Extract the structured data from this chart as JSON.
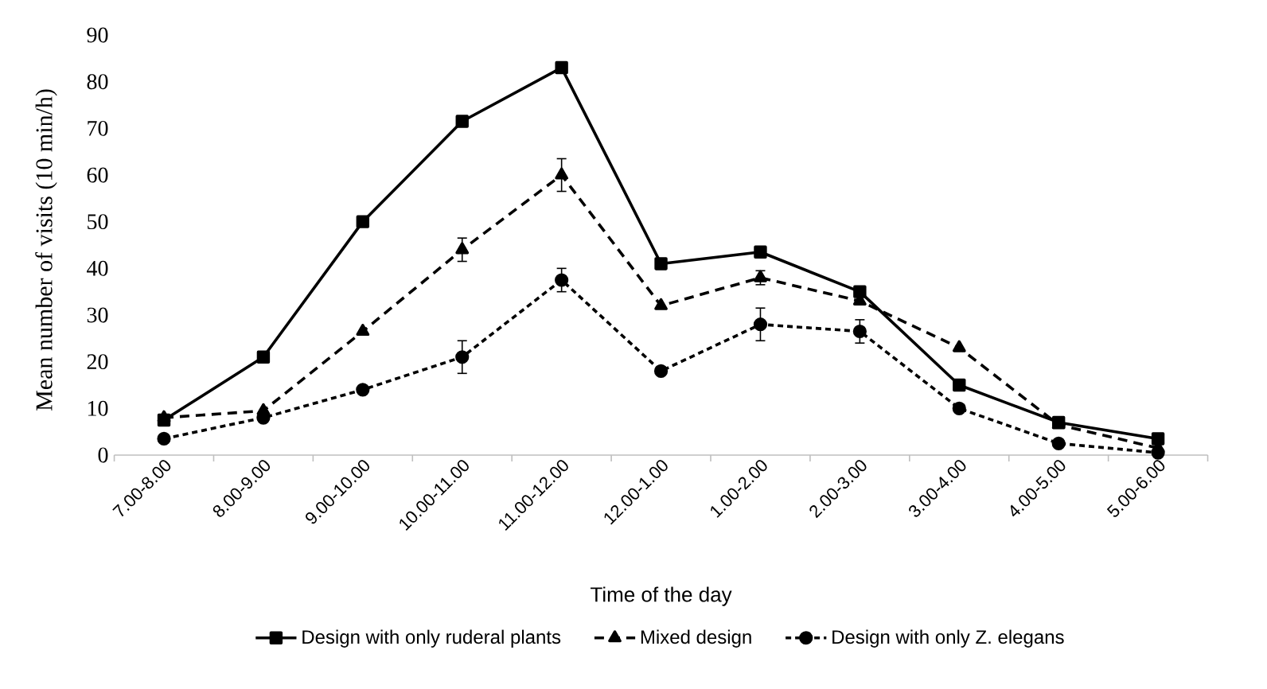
{
  "chart_data": {
    "type": "line",
    "xlabel": "Time of the day",
    "ylabel": "Mean number of  visits (10 min/h)",
    "categories": [
      "7.00-8.00",
      "8.00-9.00",
      "9.00-10.00",
      "10.00-11.00",
      "11.00-12.00",
      "12.00-1.00",
      "1.00-2.00",
      "2.00-3.00",
      "3.00-4.00",
      "4.00-5.00",
      "5.00-6.00"
    ],
    "ylim": [
      0,
      90
    ],
    "yticks": [
      0,
      10,
      20,
      30,
      40,
      50,
      60,
      70,
      80,
      90
    ],
    "grid": false,
    "legend": "bottom",
    "series": [
      {
        "name": "Design with only ruderal plants",
        "color": "#000000",
        "marker": "square",
        "line_style": "solid",
        "values": [
          7.5,
          21,
          50,
          71.5,
          83,
          41,
          43.5,
          35,
          15,
          7,
          3.5
        ]
      },
      {
        "name": "Mixed design",
        "color": "#000000",
        "marker": "triangle",
        "line_style": "dashed",
        "values": [
          8,
          9.5,
          26.5,
          44,
          60,
          32,
          38,
          33,
          23,
          6.5,
          1.5
        ],
        "errors": [
          null,
          null,
          null,
          2.5,
          3.5,
          null,
          1.5,
          null,
          null,
          null,
          null
        ]
      },
      {
        "name": "Design with only Z. elegans",
        "color": "#000000",
        "marker": "circle",
        "line_style": "dotted",
        "values": [
          3.5,
          8,
          14,
          21,
          37.5,
          18,
          28,
          26.5,
          10,
          2.5,
          0.5
        ],
        "errors": [
          null,
          null,
          null,
          3.5,
          2.5,
          null,
          3.5,
          2.5,
          null,
          null,
          null
        ]
      }
    ]
  }
}
